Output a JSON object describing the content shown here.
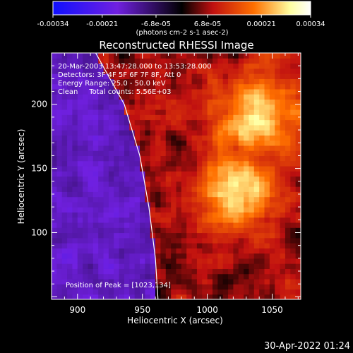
{
  "chart_data": {
    "type": "heatmap",
    "title": "Reconstructed RHESSI Image",
    "xlabel": "Heliocentric X (arcsec)",
    "ylabel": "Heliocentric Y (arcsec)",
    "xlim": [
      880,
      1072
    ],
    "ylim": [
      48,
      240
    ],
    "x_ticks": [
      900,
      950,
      1000,
      1050
    ],
    "y_ticks": [
      100,
      150,
      200
    ],
    "colorbar": {
      "range": [
        -0.00034,
        0.00034
      ],
      "tick_values": [
        -0.00034,
        -0.00021,
        -6.8e-05,
        6.8e-05,
        0.00021,
        0.00034
      ],
      "tick_labels": [
        "-0.00034",
        "-0.00021",
        "-6.8e-05",
        "6.8e-05",
        "0.00021",
        "0.00034"
      ],
      "unit_label": "(photons cm-2 s-1 asec-2)",
      "colors": [
        "#1010ff",
        "#7020e0",
        "#000000",
        "#c01010",
        "#ff7000",
        "#ffffa0",
        "#ffffff"
      ]
    },
    "annotations": {
      "time": "20-Mar-2003 13:47:28.000 to 13:53:28.000",
      "detectors": "Detectors: 3F 4F 5F 6F 7F 8F, Att 0",
      "energy": "Energy Range: 25.0 - 50.0 keV",
      "method": "Clean     Total counts: 5.56E+03",
      "peak": "Position of Peak = [1023,134]"
    },
    "peak_position": [
      1023,
      134
    ],
    "secondary_peak": [
      1037,
      190
    ],
    "limb": {
      "description": "solar limb arc",
      "points": [
        [
          914,
          240
        ],
        [
          936,
          200
        ],
        [
          948,
          160
        ],
        [
          955,
          120
        ],
        [
          960,
          80
        ],
        [
          962,
          48
        ]
      ]
    },
    "grid": false
  },
  "footer": {
    "date": "30-Apr-2022 01:24"
  }
}
